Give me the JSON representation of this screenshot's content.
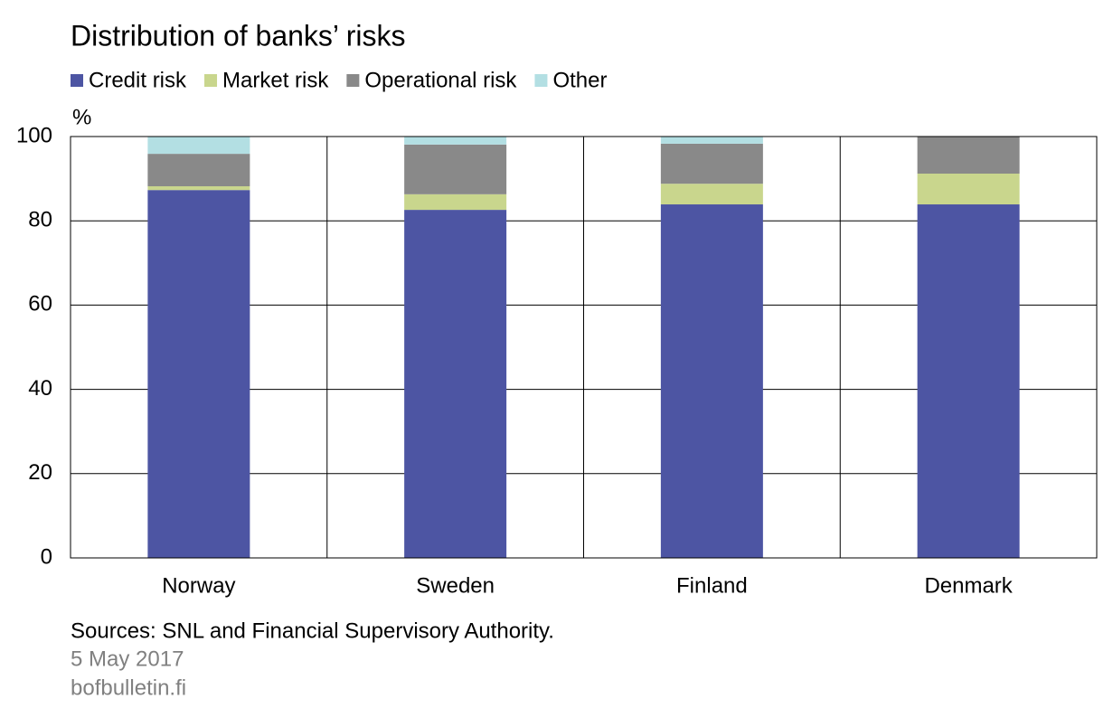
{
  "chart_data": {
    "type": "stacked-bar",
    "title": "Distribution of banks’ risks",
    "y_label": "%",
    "categories": [
      "Norway",
      "Sweden",
      "Finland",
      "Denmark"
    ],
    "series": [
      {
        "name": "Credit risk",
        "color": "#4d55a3",
        "values": [
          87.3,
          82.6,
          83.9,
          83.9
        ]
      },
      {
        "name": "Market risk",
        "color": "#c9d68d",
        "values": [
          0.9,
          3.7,
          4.9,
          7.3
        ]
      },
      {
        "name": "Operational risk",
        "color": "#898989",
        "values": [
          7.7,
          11.8,
          9.5,
          8.8
        ]
      },
      {
        "name": "Other",
        "color": "#b3dfe3",
        "values": [
          4.1,
          1.9,
          1.7,
          0
        ]
      }
    ],
    "ylim": [
      0,
      100
    ],
    "yticks": [
      0,
      20,
      40,
      60,
      80,
      100
    ],
    "grid": true,
    "source": "Sources: SNL and Financial Supervisory Authority.",
    "date": "5 May 2017",
    "site": "bofbulletin.fi"
  }
}
